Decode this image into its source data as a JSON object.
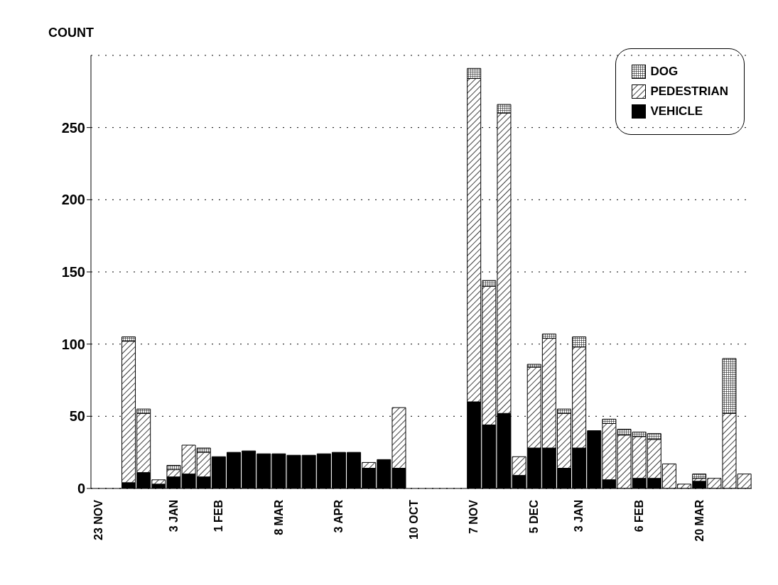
{
  "chart_data": {
    "type": "bar",
    "stacked": true,
    "ylabel": "COUNT",
    "categories": [
      "23 NOV",
      null,
      null,
      null,
      null,
      "3 JAN",
      null,
      null,
      "1 FEB",
      null,
      null,
      null,
      "8 MAR",
      null,
      null,
      null,
      "3 APR",
      null,
      null,
      null,
      null,
      "10 OCT",
      null,
      null,
      null,
      "7 NOV",
      null,
      null,
      null,
      "5 DEC",
      null,
      null,
      "3 JAN",
      null,
      null,
      null,
      "6 FEB",
      null,
      null,
      null,
      "20 MAR",
      null,
      null,
      null
    ],
    "series": [
      {
        "name": "VEHICLE",
        "color": "#000000",
        "values": [
          null,
          null,
          4,
          11,
          3,
          8,
          10,
          8,
          22,
          25,
          26,
          24,
          24,
          23,
          23,
          24,
          25,
          25,
          14,
          20,
          14,
          null,
          null,
          null,
          null,
          60,
          44,
          52,
          9,
          28,
          28,
          14,
          28,
          40,
          6,
          null,
          7,
          7,
          null,
          null,
          5,
          null,
          null,
          null
        ]
      },
      {
        "name": "PEDESTRIAN",
        "color": "#000000",
        "values": [
          null,
          null,
          98,
          41,
          3,
          5,
          20,
          17,
          null,
          null,
          null,
          null,
          null,
          null,
          null,
          null,
          null,
          null,
          4,
          null,
          42,
          null,
          null,
          null,
          null,
          224,
          96,
          208,
          13,
          56,
          76,
          38,
          70,
          null,
          39,
          37,
          29,
          27,
          17,
          3,
          2,
          7,
          52,
          10
        ]
      },
      {
        "name": "DOG",
        "color": "#000000",
        "values": [
          null,
          null,
          3,
          3,
          null,
          3,
          null,
          3,
          null,
          null,
          null,
          null,
          null,
          null,
          null,
          null,
          null,
          null,
          null,
          null,
          null,
          null,
          null,
          null,
          null,
          7,
          4,
          6,
          null,
          2,
          3,
          3,
          7,
          null,
          3,
          4,
          3,
          4,
          null,
          null,
          3,
          null,
          38,
          null
        ]
      }
    ],
    "ylim": [
      0,
      300
    ],
    "yticks": [
      0,
      50,
      100,
      150,
      200,
      250
    ],
    "grid": "y",
    "legend": "top right"
  }
}
